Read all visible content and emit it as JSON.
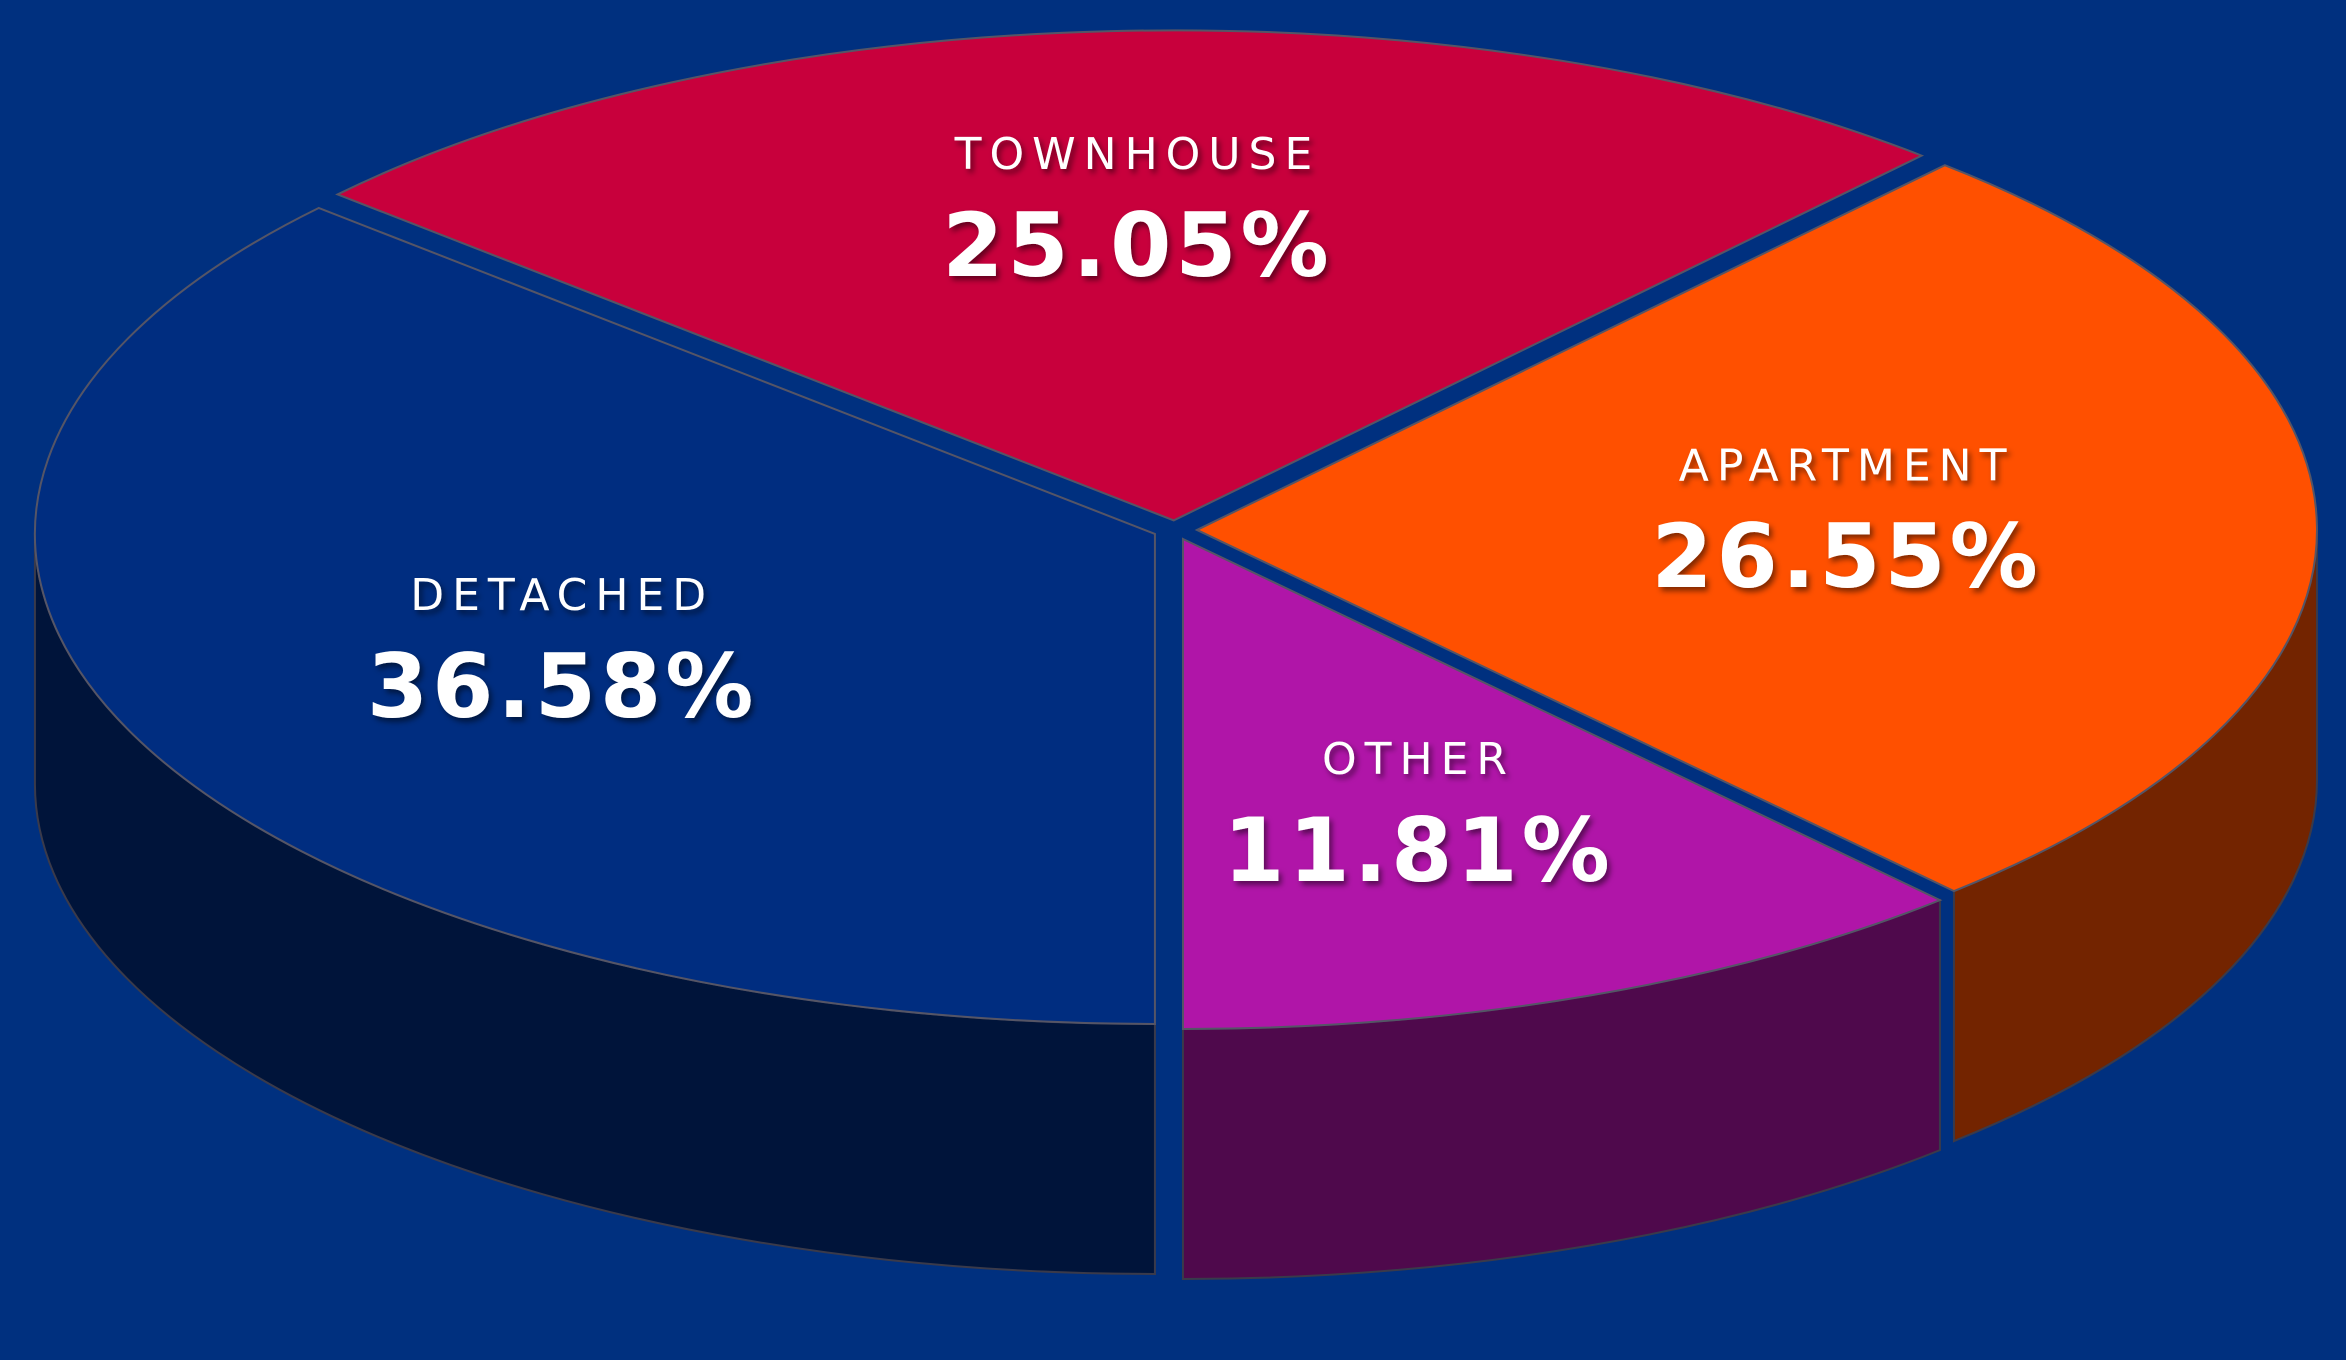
{
  "chart_data": {
    "type": "pie",
    "categories": [
      "DETACHED",
      "TOWNHOUSE",
      "APARTMENT",
      "OTHER"
    ],
    "values": [
      36.58,
      25.05,
      26.55,
      11.81
    ],
    "value_labels": [
      "36.58%",
      "25.05%",
      "26.55%",
      "11.81%"
    ],
    "colors": [
      "#002d80",
      "#c8003c",
      "#ff5000",
      "#b015a8"
    ]
  }
}
